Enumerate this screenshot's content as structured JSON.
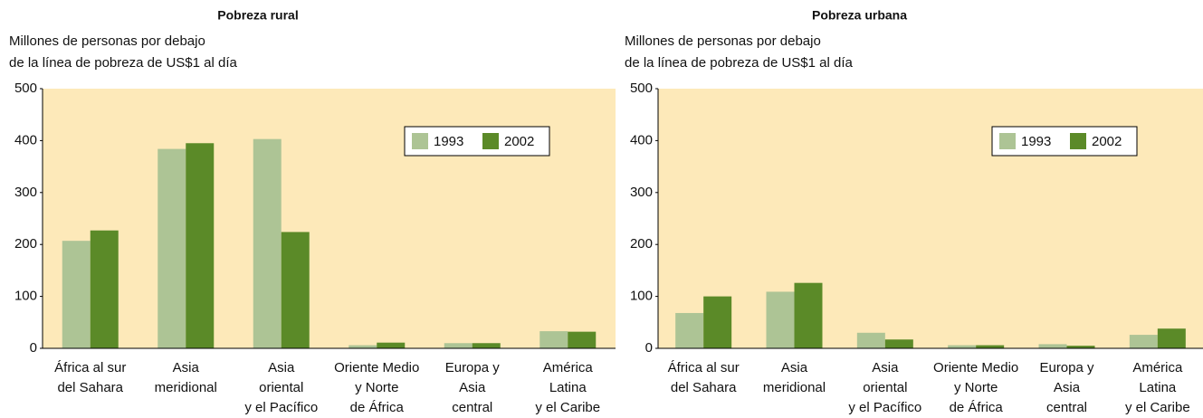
{
  "chart_data": [
    {
      "type": "bar",
      "title": "Pobreza rural",
      "ylabel": [
        "Millones de personas por debajo",
        "de la línea de pobreza de US$1 al día"
      ],
      "categories": [
        [
          "África al sur",
          "del Sahara"
        ],
        [
          "Asia",
          "meridional"
        ],
        [
          "Asia",
          "oriental",
          "y el Pacífico"
        ],
        [
          "Oriente Medio",
          "y Norte",
          "de África"
        ],
        [
          "Europa y",
          "Asia",
          "central"
        ],
        [
          "América",
          "Latina",
          "y el Caribe"
        ]
      ],
      "series": [
        {
          "name": "1993",
          "color": "#adc495",
          "values": [
            207,
            384,
            403,
            6,
            10,
            33
          ]
        },
        {
          "name": "2002",
          "color": "#5b8a28",
          "values": [
            227,
            395,
            224,
            11,
            10,
            32
          ]
        }
      ],
      "ylim": [
        0,
        500
      ],
      "yticks": [
        0,
        100,
        200,
        300,
        400,
        500
      ],
      "legend": "upper right"
    },
    {
      "type": "bar",
      "title": "Pobreza urbana",
      "ylabel": [
        "Millones de personas por debajo",
        "de la línea de pobreza de US$1 al día"
      ],
      "categories": [
        [
          "África al sur",
          "del Sahara"
        ],
        [
          "Asia",
          "meridional"
        ],
        [
          "Asia",
          "oriental",
          "y el Pacífico"
        ],
        [
          "Oriente Medio",
          "y Norte",
          "de África"
        ],
        [
          "Europa y",
          "Asia",
          "central"
        ],
        [
          "América",
          "Latina",
          "y el Caribe"
        ]
      ],
      "series": [
        {
          "name": "1993",
          "color": "#adc495",
          "values": [
            68,
            109,
            30,
            6,
            8,
            26
          ]
        },
        {
          "name": "2002",
          "color": "#5b8a28",
          "values": [
            100,
            126,
            17,
            6,
            5,
            38
          ]
        }
      ],
      "ylim": [
        0,
        500
      ],
      "yticks": [
        0,
        100,
        200,
        300,
        400,
        500
      ],
      "legend": "upper right"
    }
  ]
}
